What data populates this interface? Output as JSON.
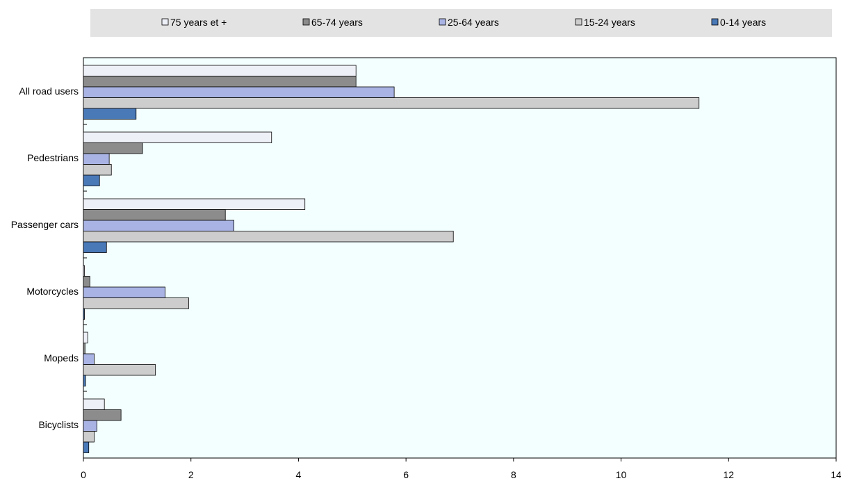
{
  "chart_data": {
    "type": "bar",
    "orientation": "horizontal",
    "categories": [
      "All road users",
      "Pedestrians",
      "Passenger cars",
      "Motorcycles",
      "Mopeds",
      "Bicyclists"
    ],
    "series": [
      {
        "name": "75 years et +",
        "color": "#eef0f8",
        "values": [
          5.07,
          3.5,
          4.12,
          0.02,
          0.08,
          0.39
        ]
      },
      {
        "name": "65-74 years",
        "color": "#8c8c8c",
        "values": [
          5.07,
          1.1,
          2.64,
          0.12,
          0.03,
          0.7
        ]
      },
      {
        "name": "25-64 years",
        "color": "#a9b4e4",
        "values": [
          5.78,
          0.48,
          2.8,
          1.52,
          0.2,
          0.25
        ]
      },
      {
        "name": "15-24 years",
        "color": "#cdcdcd",
        "values": [
          11.45,
          0.52,
          6.88,
          1.96,
          1.34,
          0.2
        ]
      },
      {
        "name": "0-14 years",
        "color": "#4a79b8",
        "values": [
          0.98,
          0.3,
          0.43,
          0.02,
          0.04,
          0.1
        ]
      }
    ],
    "xlim": [
      0,
      14
    ],
    "xticks": [
      "0",
      "2",
      "4",
      "6",
      "8",
      "10",
      "12",
      "14"
    ],
    "grid": false,
    "legend_position": "top",
    "plot_background": "#f3ffff"
  }
}
